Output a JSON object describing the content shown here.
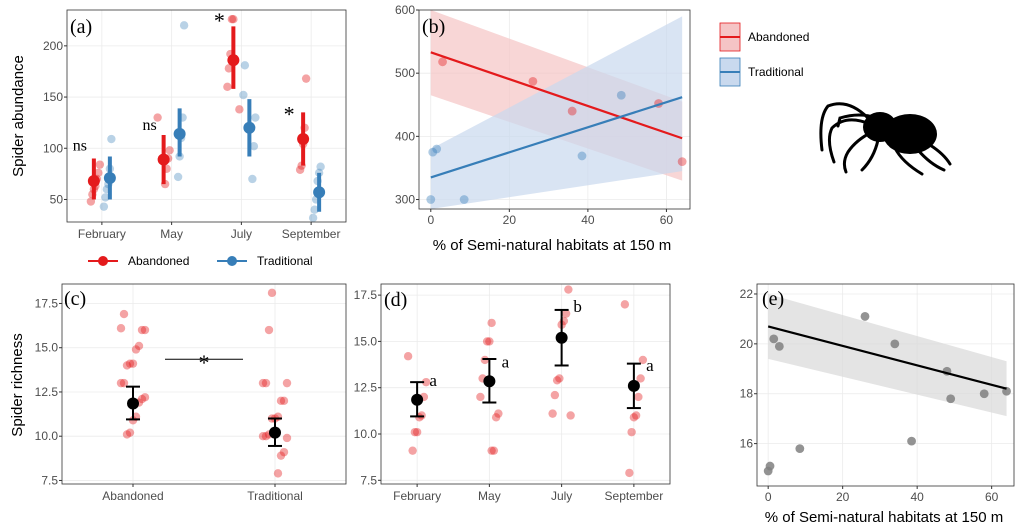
{
  "chart_data": [
    {
      "panel": "(a)",
      "type": "scatter",
      "ylabel": "Spider abundance",
      "xlabel": "",
      "categories": [
        "February",
        "May",
        "July",
        "September"
      ],
      "yticks": [
        50,
        100,
        150,
        200
      ],
      "ylim": [
        28,
        235
      ],
      "grid": true,
      "series": [
        {
          "name": "Abandoned",
          "color": "#e41a1c",
          "means": [
            68,
            89,
            186,
            109
          ],
          "ci_low": [
            50,
            65,
            158,
            83
          ],
          "ci_high": [
            90,
            113,
            219,
            135
          ],
          "points": [
            [
              48,
              55,
              60,
              63,
              70,
              76,
              84
            ],
            [
              65,
              80,
              90,
              98,
              130
            ],
            [
              138,
              160,
              178,
              192,
              226,
              226
            ],
            [
              79,
              83,
              104,
              120,
              168
            ]
          ]
        },
        {
          "name": "Traditional",
          "color": "#377eb8",
          "means": [
            71,
            114,
            120,
            57
          ],
          "ci_low": [
            50,
            92,
            92,
            38
          ],
          "ci_high": [
            92,
            139,
            148,
            76
          ],
          "points": [
            [
              43,
              52,
              60,
              65,
              80,
              109
            ],
            [
              72,
              92,
              110,
              130,
              220
            ],
            [
              70,
              102,
              130,
              152,
              181
            ],
            [
              32,
              40,
              50,
              68,
              76,
              82
            ]
          ]
        }
      ],
      "annotations": [
        "ns",
        "ns",
        "*",
        "*"
      ]
    },
    {
      "panel": "(b)",
      "type": "scatter",
      "xlabel": "% of Semi-natural habitats at 150 m",
      "ylabel": "",
      "xlim": [
        -3,
        66
      ],
      "ylim": [
        285,
        600
      ],
      "xticks": [
        0,
        20,
        40,
        60
      ],
      "yticks": [
        300,
        400,
        500,
        600
      ],
      "grid": true,
      "series": [
        {
          "name": "Abandoned",
          "color": "#e41a1c",
          "points": [
            [
              3,
              518
            ],
            [
              26,
              487
            ],
            [
              36,
              440
            ],
            [
              58,
              452
            ],
            [
              64,
              360
            ]
          ],
          "fit": {
            "x0": 0,
            "y0": 533,
            "x1": 64,
            "y1": 397
          },
          "band": {
            "low0": 465,
            "high0": 615,
            "low1": 330,
            "high1": 455
          }
        },
        {
          "name": "Traditional",
          "color": "#377eb8",
          "points": [
            [
              0,
              300
            ],
            [
              0.5,
              375
            ],
            [
              1.5,
              380
            ],
            [
              8.5,
              300
            ],
            [
              38.5,
              369
            ],
            [
              48.5,
              465
            ]
          ],
          "fit": {
            "x0": 0,
            "y0": 335,
            "x1": 64,
            "y1": 462
          },
          "band": {
            "low0": 285,
            "high0": 380,
            "low1": 345,
            "high1": 590
          }
        }
      ]
    },
    {
      "panel": "(c)",
      "type": "scatter",
      "ylabel": "Spider richness",
      "xlabel": "",
      "categories": [
        "Abandoned",
        "Traditional"
      ],
      "yticks": [
        7.5,
        10.0,
        12.5,
        15.0,
        17.5
      ],
      "ylim": [
        7.3,
        18.6
      ],
      "grid": true,
      "series": [
        {
          "name": "Spider richness",
          "color": "#000000",
          "means": [
            11.85,
            10.2
          ],
          "ci_low": [
            10.95,
            9.45
          ],
          "ci_high": [
            12.8,
            11.0
          ],
          "points": [
            [
              10.1,
              10.2,
              10.9,
              11.1,
              11.9,
              12.1,
              12.2,
              13.0,
              13.0,
              14.0,
              14.1,
              14.1,
              14.9,
              15.1,
              16.0,
              16.0,
              16.1,
              16.9
            ],
            [
              7.9,
              8.9,
              9.1,
              9.9,
              10.0,
              10.0,
              10.1,
              11.0,
              11.0,
              11.1,
              12.0,
              12.0,
              13.0,
              13.0,
              13.0,
              16.0,
              18.1
            ]
          ]
        }
      ],
      "annotations": [
        "*"
      ]
    },
    {
      "panel": "(d)",
      "type": "scatter",
      "ylabel": "",
      "xlabel": "",
      "categories": [
        "February",
        "May",
        "July",
        "September"
      ],
      "yticks": [
        7.5,
        10.0,
        12.5,
        15.0,
        17.5
      ],
      "ylim": [
        7.3,
        18.1
      ],
      "grid": true,
      "series": [
        {
          "name": "Spider richness",
          "color": "#000000",
          "means": [
            11.85,
            12.85,
            15.2,
            12.6
          ],
          "ci_low": [
            10.95,
            11.7,
            13.7,
            11.4
          ],
          "ci_high": [
            12.8,
            14.05,
            16.7,
            13.8
          ],
          "points": [
            [
              9.1,
              10.1,
              10.1,
              10.9,
              11.0,
              12.0,
              12.8,
              14.2
            ],
            [
              9.1,
              9.1,
              10.9,
              11.1,
              12.0,
              13.0,
              14.0,
              15.0,
              15.0,
              16.0
            ],
            [
              11.0,
              11.1,
              12.1,
              12.9,
              13.0,
              15.9,
              16.1,
              16.5,
              17.8
            ],
            [
              7.9,
              10.1,
              10.9,
              11.0,
              12.0,
              13.0,
              14.0,
              17.0
            ]
          ]
        }
      ],
      "annotations": [
        "a",
        "a",
        "b",
        "a"
      ]
    },
    {
      "panel": "(e)",
      "type": "scatter",
      "xlabel": "% of Semi-natural habitats at 150 m",
      "ylabel": "",
      "xlim": [
        -3,
        66
      ],
      "ylim": [
        14.3,
        22.4
      ],
      "xticks": [
        0,
        20,
        40,
        60
      ],
      "yticks": [
        16,
        18,
        20,
        22
      ],
      "grid": true,
      "series": [
        {
          "name": "Spider richness",
          "color": "#808080",
          "points": [
            [
              0,
              14.9
            ],
            [
              0.5,
              15.1
            ],
            [
              1.5,
              20.2
            ],
            [
              3,
              19.9
            ],
            [
              8.5,
              15.8
            ],
            [
              26,
              21.1
            ],
            [
              34,
              20.0
            ],
            [
              38.5,
              16.1
            ],
            [
              48,
              18.9
            ],
            [
              49,
              17.8
            ],
            [
              58,
              18.0
            ],
            [
              64,
              18.1
            ]
          ],
          "fit": {
            "x0": 0,
            "y0": 20.7,
            "x1": 64,
            "y1": 18.2
          },
          "band": {
            "low0": 19.4,
            "high0": 22.0,
            "low1": 17.1,
            "high1": 19.3
          }
        }
      ]
    }
  ],
  "legends": {
    "bottom": [
      "Abandoned",
      "Traditional"
    ],
    "top_right": [
      "Abandoned",
      "Traditional"
    ]
  },
  "colors": {
    "abandoned": "#e41a1c",
    "traditional": "#377eb8",
    "panel_bg": "#ffffff",
    "grid": "#ebebeb",
    "ci_band_abandoned": "#f5c4c5",
    "ci_band_traditional": "#c9d9ee",
    "ci_band_grey": "#d9d9d9"
  },
  "icons": {
    "spider": "spider-silhouette-icon"
  }
}
